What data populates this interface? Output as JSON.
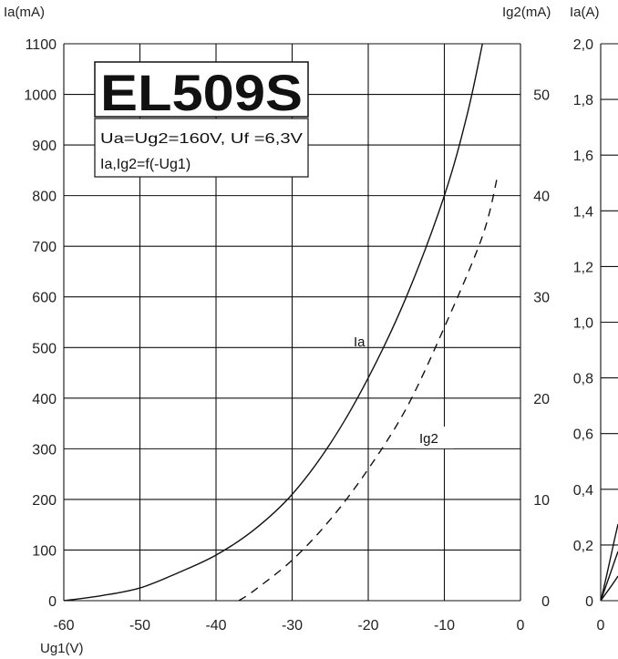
{
  "chart_data": [
    {
      "type": "line",
      "title": "EL509S",
      "conditions_line1": "Ua=Ug2=160V, Uf =6,3V",
      "conditions_line2": "Ia,Ig2=f(-Ug1)",
      "xlabel": "Ug1(V)",
      "ylabel_left": "Ia(mA)",
      "ylabel_right": "Ig2(mA)",
      "xlim": [
        -60,
        0
      ],
      "ylim_left": [
        0,
        1100
      ],
      "ylim_right": [
        0,
        55
      ],
      "grid": true,
      "x_ticks": [
        "-60",
        "-50",
        "-40",
        "-30",
        "-20",
        "-10",
        "0"
      ],
      "y_left_ticks": [
        "0",
        "100",
        "200",
        "300",
        "400",
        "500",
        "600",
        "700",
        "800",
        "900",
        "1000",
        "1100"
      ],
      "y_right_ticks": [
        "0",
        "10",
        "20",
        "30",
        "40",
        "50"
      ],
      "series": [
        {
          "name": "Ia",
          "axis": "left",
          "style": "solid",
          "x": [
            -60,
            -55,
            -50,
            -45,
            -40,
            -35,
            -30,
            -25,
            -20,
            -15,
            -10,
            -7,
            -5
          ],
          "y": [
            0,
            10,
            25,
            55,
            90,
            140,
            210,
            310,
            440,
            600,
            800,
            960,
            1100
          ]
        },
        {
          "name": "Ig2",
          "axis": "right",
          "style": "dashed",
          "x": [
            -37,
            -35,
            -30,
            -25,
            -20,
            -15,
            -10,
            -5,
            -3
          ],
          "y": [
            0,
            1,
            4,
            8,
            13,
            19,
            27,
            36,
            42
          ]
        }
      ],
      "series_labels": [
        "Ia",
        "Ig2"
      ]
    },
    {
      "type": "line",
      "ylabel": "Ia(A)",
      "y_ticks": [
        "0",
        "0,2",
        "0,4",
        "0,6",
        "0,8",
        "1,0",
        "1,2",
        "1,4",
        "1,6",
        "1,8",
        "2,0"
      ],
      "x_ticks": [
        "0"
      ],
      "ylim": [
        0,
        2.0
      ],
      "grid": true
    }
  ]
}
